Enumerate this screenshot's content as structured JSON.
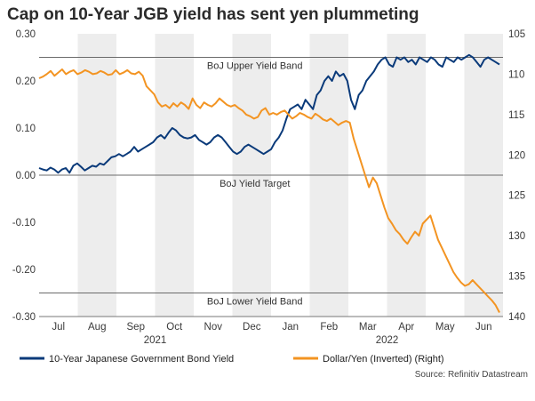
{
  "chart_data": {
    "type": "line",
    "title": "Cap on 10-Year JGB yield has sent yen plummeting",
    "source": "Source: Refinitiv Datastream",
    "x_labels": [
      "Jul",
      "Aug",
      "Sep",
      "Oct",
      "Nov",
      "Dec",
      "Jan",
      "Feb",
      "Mar",
      "Apr",
      "May",
      "Jun"
    ],
    "year_labels": [
      "2021",
      "2022"
    ],
    "y_left": {
      "ylim": [
        -0.3,
        0.3
      ],
      "ticks": [
        "0.30",
        "0.20",
        "0.10",
        "0.00",
        "-0.10",
        "-0.20",
        "-0.30"
      ]
    },
    "y_right": {
      "ylim": [
        105,
        140
      ],
      "inverted": true,
      "ticks": [
        "105",
        "110",
        "115",
        "120",
        "125",
        "130",
        "135",
        "140"
      ]
    },
    "reference_lines": [
      {
        "value": 0.25,
        "label": "BoJ Upper Yield Band"
      },
      {
        "value": 0.0,
        "label": "BoJ Yield Target"
      },
      {
        "value": -0.25,
        "label": "BoJ Lower Yield Band"
      }
    ],
    "series": [
      {
        "name": "10-Year Japanese Government Bond Yield",
        "axis": "left",
        "color": "#0a3a7a",
        "values": [
          0.015,
          0.012,
          0.01,
          0.016,
          0.012,
          0.005,
          0.012,
          0.015,
          0.005,
          0.02,
          0.025,
          0.018,
          0.01,
          0.015,
          0.02,
          0.018,
          0.025,
          0.022,
          0.03,
          0.038,
          0.04,
          0.045,
          0.04,
          0.045,
          0.05,
          0.06,
          0.05,
          0.055,
          0.06,
          0.065,
          0.07,
          0.08,
          0.085,
          0.078,
          0.09,
          0.1,
          0.095,
          0.085,
          0.08,
          0.078,
          0.08,
          0.085,
          0.075,
          0.07,
          0.065,
          0.07,
          0.08,
          0.085,
          0.08,
          0.07,
          0.06,
          0.05,
          0.045,
          0.05,
          0.06,
          0.065,
          0.06,
          0.055,
          0.05,
          0.045,
          0.05,
          0.055,
          0.07,
          0.08,
          0.095,
          0.12,
          0.14,
          0.145,
          0.15,
          0.14,
          0.16,
          0.15,
          0.14,
          0.17,
          0.18,
          0.2,
          0.21,
          0.2,
          0.22,
          0.21,
          0.215,
          0.2,
          0.16,
          0.14,
          0.17,
          0.18,
          0.2,
          0.21,
          0.22,
          0.235,
          0.245,
          0.25,
          0.235,
          0.23,
          0.25,
          0.245,
          0.25,
          0.24,
          0.245,
          0.235,
          0.25,
          0.245,
          0.24,
          0.25,
          0.245,
          0.235,
          0.23,
          0.25,
          0.245,
          0.24,
          0.25,
          0.245,
          0.25,
          0.255,
          0.25,
          0.24,
          0.23,
          0.245,
          0.25,
          0.245,
          0.24,
          0.235
        ]
      },
      {
        "name": "Dollar/Yen (Inverted) (Right)",
        "axis": "right",
        "color": "#f39422",
        "values": [
          110.5,
          110.3,
          110.0,
          109.6,
          110.2,
          109.8,
          109.4,
          110.0,
          109.7,
          109.5,
          110.0,
          109.8,
          109.5,
          109.7,
          110.0,
          109.9,
          109.6,
          109.8,
          110.1,
          110.0,
          109.5,
          110.0,
          109.8,
          109.5,
          109.9,
          110.0,
          109.7,
          110.2,
          111.5,
          112.0,
          112.5,
          113.5,
          114.0,
          113.8,
          114.2,
          113.6,
          114.0,
          113.5,
          113.8,
          114.3,
          113.0,
          113.8,
          114.2,
          113.5,
          113.8,
          114.0,
          113.6,
          113.0,
          113.4,
          113.8,
          114.0,
          113.8,
          114.2,
          114.5,
          115.0,
          115.2,
          115.5,
          115.3,
          114.5,
          114.2,
          115.0,
          114.8,
          115.0,
          114.7,
          114.5,
          115.0,
          115.5,
          115.2,
          114.8,
          115.0,
          115.3,
          115.5,
          114.9,
          115.2,
          115.6,
          115.8,
          115.5,
          115.9,
          116.3,
          116.0,
          115.8,
          116.0,
          118.0,
          119.5,
          121.0,
          122.5,
          124.0,
          122.8,
          123.5,
          125.0,
          126.5,
          127.8,
          128.5,
          129.3,
          129.8,
          130.5,
          131.0,
          130.2,
          129.5,
          130.0,
          128.5,
          128.0,
          127.5,
          129.0,
          130.5,
          131.5,
          132.5,
          133.5,
          134.5,
          135.2,
          135.8,
          136.2,
          136.0,
          135.5,
          136.0,
          136.5,
          137.0,
          137.5,
          138.0,
          138.6,
          139.5
        ]
      }
    ]
  }
}
